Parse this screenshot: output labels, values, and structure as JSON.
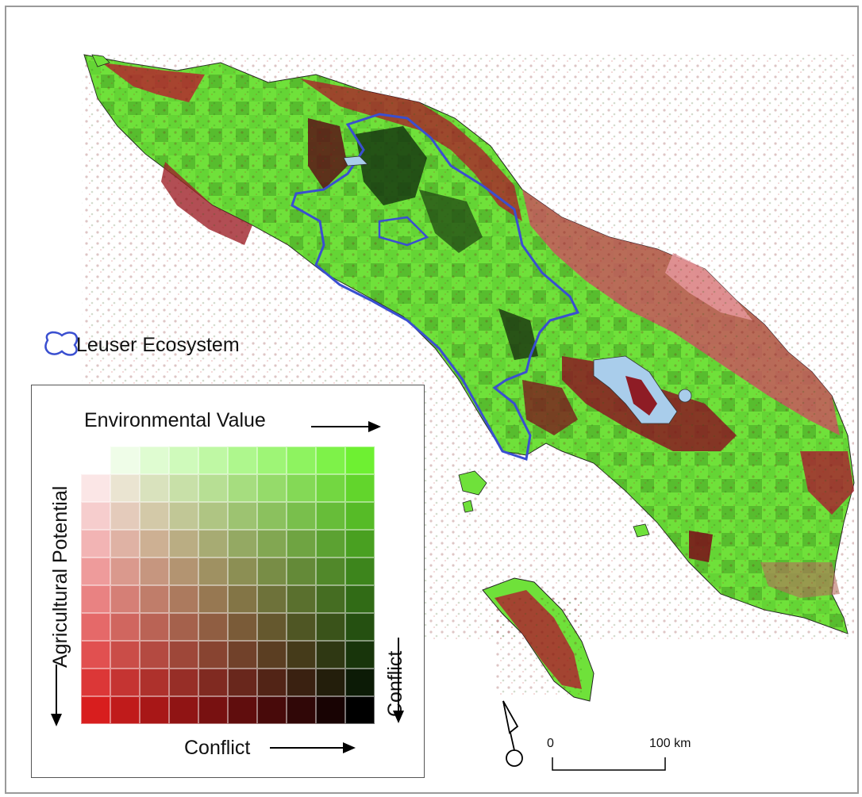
{
  "legend": {
    "ecosystem_label": "Leuser Ecosystem",
    "x_axis_label": "Environmental Value",
    "y_axis_label": "Agricultural Potential",
    "diagonal_label_bottom": "Conflict",
    "diagonal_label_right": "Conflict"
  },
  "scale_bar": {
    "start_label": "0",
    "end_label": "100 km"
  },
  "colors": {
    "low_env_high_agri": "#d81e1e",
    "high_env_low_agri": "#6ef032",
    "high_conflict": "#000000",
    "no_conflict": "#ffffff",
    "ecosystem_outline": "#3a4fd0",
    "lakes": "#a9cdeb"
  }
}
